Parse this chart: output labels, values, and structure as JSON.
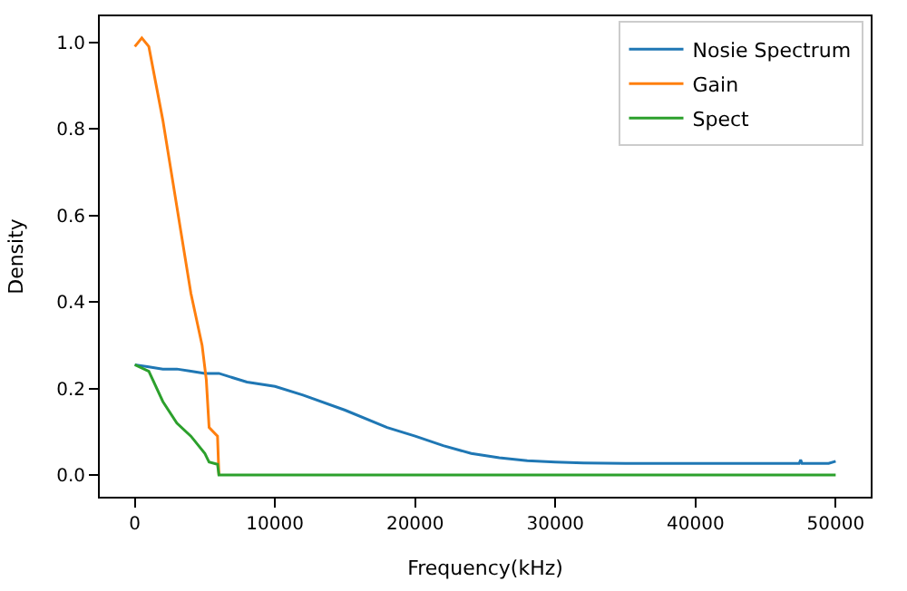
{
  "chart_data": {
    "type": "line",
    "xlabel": "Frequency(kHz)",
    "ylabel": "Density",
    "xlim": [
      -2500,
      52500
    ],
    "ylim": [
      -0.05,
      1.06
    ],
    "xticks": [
      0,
      10000,
      20000,
      30000,
      40000,
      50000
    ],
    "yticks": [
      {
        "value": 0,
        "label": "0.0"
      },
      0.2,
      0.4,
      0.6,
      0.8,
      {
        "value": 1,
        "label": "1.0"
      }
    ],
    "legend": "top right",
    "series": [
      {
        "name": "Nosie Spectrum",
        "color": "#1f77b4",
        "x": [
          0,
          1000,
          2000,
          3000,
          4000,
          5000,
          6000,
          7000,
          8000,
          10000,
          12000,
          15000,
          18000,
          20000,
          22000,
          24000,
          26000,
          28000,
          30000,
          32000,
          35000,
          40000,
          45000,
          47400,
          47500,
          47600,
          49500,
          50000
        ],
        "values": [
          0.255,
          0.25,
          0.245,
          0.245,
          0.24,
          0.235,
          0.235,
          0.225,
          0.215,
          0.205,
          0.185,
          0.15,
          0.11,
          0.09,
          0.068,
          0.05,
          0.04,
          0.033,
          0.03,
          0.028,
          0.027,
          0.027,
          0.027,
          0.027,
          0.035,
          0.027,
          0.027,
          0.032
        ]
      },
      {
        "name": "Gain",
        "color": "#ff7f0e",
        "x": [
          0,
          500,
          1000,
          2000,
          3000,
          4000,
          4800,
          5100,
          5300,
          5900,
          6000
        ],
        "values": [
          0.99,
          1.01,
          0.99,
          0.82,
          0.62,
          0.42,
          0.3,
          0.22,
          0.11,
          0.09,
          0.0
        ]
      },
      {
        "name": "Spect",
        "color": "#2ca02c",
        "x": [
          0,
          1000,
          2000,
          3000,
          4000,
          5000,
          5300,
          5900,
          6000,
          50000
        ],
        "values": [
          0.255,
          0.24,
          0.17,
          0.12,
          0.09,
          0.05,
          0.03,
          0.025,
          0.0,
          0.0
        ]
      }
    ]
  }
}
